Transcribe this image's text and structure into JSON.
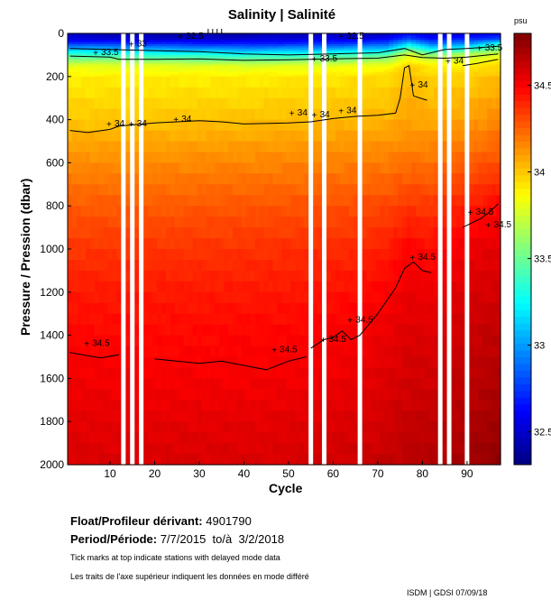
{
  "chart_data": {
    "type": "heatmap",
    "title": "Salinity | Salinité",
    "xlabel": "Cycle",
    "ylabel": "Pressure / Pression (dbar)",
    "xlim": [
      0.5,
      97.5
    ],
    "ylim": [
      2000,
      0
    ],
    "xticks": [
      10,
      20,
      30,
      40,
      50,
      60,
      70,
      80,
      90
    ],
    "yticks": [
      0,
      200,
      400,
      600,
      800,
      1000,
      1200,
      1400,
      1600,
      1800,
      2000
    ],
    "colorbar": {
      "unit": "psu",
      "range": [
        32.31,
        34.8
      ],
      "ticks": [
        32.5,
        33,
        33.5,
        34,
        34.5
      ],
      "colormap": "jet"
    },
    "cycles_total": 97,
    "missing_cycles": [
      13,
      15,
      17,
      55,
      58,
      66,
      84,
      86,
      90
    ],
    "delayed_mode_ticks": [
      32,
      33,
      34,
      35
    ],
    "pressure_levels": [
      0,
      25,
      50,
      100,
      150,
      200,
      300,
      400,
      500,
      600,
      800,
      1000,
      1200,
      1400,
      1600,
      1800,
      2000
    ],
    "profiles": [
      {
        "cycle": 1,
        "salinity": [
          32.45,
          32.55,
          32.8,
          33.4,
          33.8,
          33.9,
          33.95,
          34.0,
          34.08,
          34.15,
          34.27,
          34.36,
          34.43,
          34.48,
          34.52,
          34.55,
          34.58
        ]
      },
      {
        "cycle": 20,
        "salinity": [
          32.4,
          32.5,
          32.75,
          33.35,
          33.8,
          33.9,
          33.96,
          34.01,
          34.08,
          34.15,
          34.27,
          34.36,
          34.43,
          34.47,
          34.51,
          34.55,
          34.58
        ]
      },
      {
        "cycle": 40,
        "salinity": [
          32.4,
          32.5,
          32.7,
          33.3,
          33.78,
          33.9,
          33.96,
          34.02,
          34.09,
          34.16,
          34.28,
          34.37,
          34.43,
          34.48,
          34.51,
          34.55,
          34.58
        ]
      },
      {
        "cycle": 55,
        "salinity": [
          32.45,
          32.55,
          32.75,
          33.35,
          33.8,
          33.92,
          33.98,
          34.03,
          34.1,
          34.17,
          34.29,
          34.38,
          34.44,
          34.49,
          34.52,
          34.56,
          34.59
        ]
      },
      {
        "cycle": 65,
        "salinity": [
          32.45,
          32.55,
          32.8,
          33.4,
          33.82,
          33.93,
          33.99,
          34.04,
          34.11,
          34.18,
          34.3,
          34.39,
          34.46,
          34.51,
          34.54,
          34.58,
          34.61
        ]
      },
      {
        "cycle": 72,
        "salinity": [
          32.45,
          32.6,
          32.85,
          33.45,
          33.85,
          33.95,
          34.0,
          34.05,
          34.12,
          34.19,
          34.32,
          34.42,
          34.49,
          34.54,
          34.57,
          34.6,
          34.63
        ]
      },
      {
        "cycle": 77,
        "salinity": [
          32.6,
          32.8,
          33.2,
          33.8,
          33.98,
          34.02,
          34.06,
          34.1,
          34.15,
          34.22,
          34.36,
          34.49,
          34.54,
          34.57,
          34.6,
          34.63,
          34.66
        ]
      },
      {
        "cycle": 82,
        "salinity": [
          32.5,
          32.65,
          32.9,
          33.6,
          33.9,
          33.97,
          34.02,
          34.07,
          34.14,
          34.21,
          34.35,
          34.46,
          34.53,
          34.57,
          34.6,
          34.64,
          34.67
        ]
      },
      {
        "cycle": 90,
        "salinity": [
          32.5,
          32.7,
          33.0,
          33.7,
          33.9,
          33.98,
          34.04,
          34.1,
          34.18,
          34.26,
          34.42,
          34.53,
          34.58,
          34.62,
          34.65,
          34.68,
          34.71
        ]
      },
      {
        "cycle": 97,
        "salinity": [
          32.6,
          32.8,
          33.3,
          33.8,
          33.95,
          34.02,
          34.1,
          34.16,
          34.23,
          34.3,
          34.48,
          34.56,
          34.6,
          34.64,
          34.68,
          34.72,
          34.76
        ]
      }
    ],
    "contours": [
      {
        "level": 33,
        "points": [
          [
            1,
            70
          ],
          [
            10,
            75
          ],
          [
            20,
            80
          ],
          [
            30,
            85
          ],
          [
            40,
            95
          ],
          [
            50,
            100
          ],
          [
            60,
            95
          ],
          [
            70,
            90
          ],
          [
            76,
            70
          ],
          [
            80,
            100
          ],
          [
            85,
            75
          ],
          [
            90,
            70
          ],
          [
            97,
            60
          ]
        ]
      },
      {
        "level": 33.5,
        "points": [
          [
            1,
            105
          ],
          [
            10,
            110
          ],
          [
            12,
            120
          ],
          [
            20,
            120
          ],
          [
            30,
            118
          ],
          [
            40,
            125
          ],
          [
            50,
            122
          ],
          [
            60,
            118
          ],
          [
            70,
            115
          ],
          [
            76,
            100
          ],
          [
            80,
            112
          ],
          [
            85,
            115
          ],
          [
            90,
            110
          ],
          [
            97,
            95
          ]
        ]
      },
      {
        "level": 34,
        "points": [
          [
            1,
            450
          ],
          [
            5,
            460
          ],
          [
            10,
            445
          ],
          [
            12,
            430
          ],
          [
            20,
            415
          ],
          [
            30,
            405
          ],
          [
            35,
            410
          ],
          [
            40,
            420
          ],
          [
            50,
            415
          ],
          [
            55,
            410
          ],
          [
            60,
            395
          ],
          [
            65,
            385
          ],
          [
            70,
            380
          ],
          [
            74,
            370
          ],
          [
            75,
            300
          ],
          [
            76,
            160
          ],
          [
            77,
            150
          ],
          [
            78,
            290
          ],
          [
            81,
            310
          ]
        ]
      },
      {
        "level": 34,
        "points": [
          [
            89,
            150
          ],
          [
            92,
            140
          ],
          [
            97,
            120
          ]
        ]
      },
      {
        "level": 34.5,
        "points": [
          [
            1,
            1480
          ],
          [
            5,
            1495
          ],
          [
            8,
            1505
          ],
          [
            12,
            1490
          ]
        ]
      },
      {
        "level": 34.5,
        "points": [
          [
            20,
            1510
          ],
          [
            25,
            1520
          ],
          [
            30,
            1530
          ],
          [
            35,
            1520
          ],
          [
            40,
            1540
          ],
          [
            45,
            1560
          ],
          [
            50,
            1520
          ],
          [
            54,
            1500
          ]
        ]
      },
      {
        "level": 34.5,
        "points": [
          [
            55,
            1460
          ],
          [
            58,
            1420
          ],
          [
            60,
            1410
          ],
          [
            62,
            1380
          ],
          [
            64,
            1420
          ],
          [
            66,
            1400
          ],
          [
            70,
            1300
          ],
          [
            72,
            1240
          ],
          [
            74,
            1180
          ],
          [
            76,
            1090
          ],
          [
            78,
            1060
          ],
          [
            80,
            1100
          ],
          [
            82,
            1110
          ]
        ]
      },
      {
        "level": 34.5,
        "points": [
          [
            89,
            900
          ],
          [
            91,
            880
          ],
          [
            93,
            860
          ],
          [
            95,
            830
          ],
          [
            97,
            790
          ]
        ]
      }
    ],
    "contour_labels": [
      {
        "text": "32.5",
        "cycle": 27,
        "pressure": 25
      },
      {
        "text": "32.5",
        "cycle": 63,
        "pressure": 25
      },
      {
        "text": "33",
        "cycle": 16,
        "pressure": 60
      },
      {
        "text": "33.5",
        "cycle": 8,
        "pressure": 100
      },
      {
        "text": "33.5",
        "cycle": 57,
        "pressure": 80
      },
      {
        "text": "33.5",
        "cycle": 94,
        "pressure": 80
      },
      {
        "text": "34",
        "cycle": 11,
        "pressure": 430
      },
      {
        "text": "34",
        "cycle": 16,
        "pressure": 430
      },
      {
        "text": "34",
        "cycle": 26,
        "pressure": 410
      },
      {
        "text": "34",
        "cycle": 52,
        "pressure": 380
      },
      {
        "text": "34",
        "cycle": 57,
        "pressure": 390
      },
      {
        "text": "34",
        "cycle": 63,
        "pressure": 370
      },
      {
        "text": "34",
        "cycle": 79,
        "pressure": 250
      },
      {
        "text": "34",
        "cycle": 87,
        "pressure": 140
      },
      {
        "text": "34.5",
        "cycle": 6,
        "pressure": 1450
      },
      {
        "text": "34.5",
        "cycle": 48,
        "pressure": 1480
      },
      {
        "text": "34.5",
        "cycle": 59,
        "pressure": 1430
      },
      {
        "text": "34.5",
        "cycle": 65,
        "pressure": 1340
      },
      {
        "text": "34.5",
        "cycle": 79,
        "pressure": 1050
      },
      {
        "text": "34.5",
        "cycle": 92,
        "pressure": 840
      },
      {
        "text": "34.5",
        "cycle": 96,
        "pressure": 800
      }
    ]
  },
  "info": {
    "float_label": "Float/Profileur dérivant:",
    "float_id": "4901790",
    "period_label": "Period/Période:",
    "period_start": "7/7/2015",
    "period_sep": "to/à",
    "period_end": "3/2/2018",
    "note_en": "Tick marks at top indicate stations with delayed mode data",
    "note_fr": "Les traits de l'axe supérieur indiquent les données en mode différé",
    "credit": "ISDM | GDSI  07/09/18"
  }
}
